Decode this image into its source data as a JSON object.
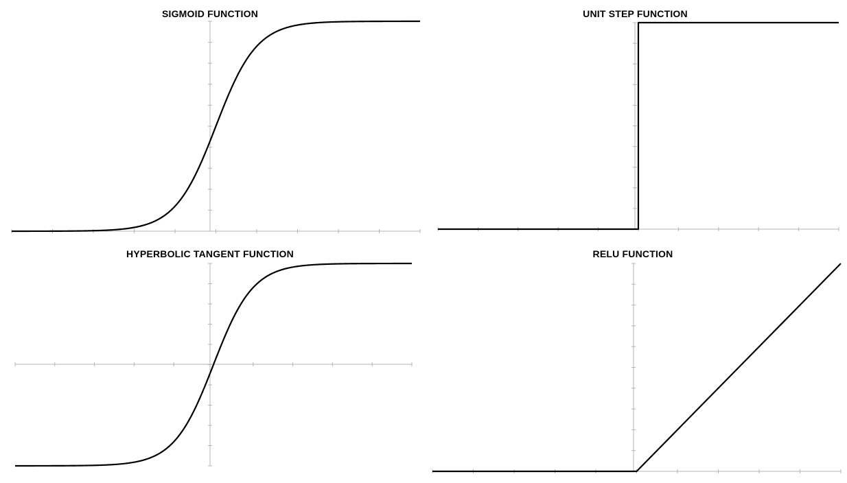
{
  "colors": {
    "axis": "#b4b4b4",
    "curve": "#000000",
    "background": "#ffffff"
  },
  "chart_data": [
    {
      "type": "line",
      "title": "SIGMOID FUNCTION",
      "function": "sigmoid",
      "x": [
        -10,
        -9,
        -8,
        -7,
        -6,
        -5,
        -4,
        -3,
        -2,
        -1,
        0,
        1,
        2,
        3,
        4,
        5,
        6,
        7,
        8,
        9,
        10
      ],
      "y": [
        0.0,
        0.0001,
        0.0003,
        0.0009,
        0.0025,
        0.0067,
        0.018,
        0.0474,
        0.1192,
        0.2689,
        0.5,
        0.7311,
        0.8808,
        0.9526,
        0.982,
        0.9933,
        0.9975,
        0.9991,
        0.9997,
        0.9999,
        1.0
      ],
      "xlim": [
        -10,
        10
      ],
      "ylim": [
        0,
        1
      ],
      "grid": false,
      "legend": "none"
    },
    {
      "type": "line",
      "title": "UNIT STEP FUNCTION",
      "function": "step",
      "x": [
        -10,
        0,
        0,
        10
      ],
      "y": [
        0,
        0,
        1,
        1
      ],
      "xlim": [
        -10,
        10
      ],
      "ylim": [
        0,
        1
      ],
      "grid": false,
      "legend": "none"
    },
    {
      "type": "line",
      "title": "HYPERBOLIC TANGENT FUNCTION",
      "function": "tanh",
      "x": [
        -5,
        -4,
        -3,
        -2,
        -1.5,
        -1,
        -0.5,
        0,
        0.5,
        1,
        1.5,
        2,
        3,
        4,
        5
      ],
      "y": [
        -0.9999,
        -0.9993,
        -0.9951,
        -0.964,
        -0.9051,
        -0.7616,
        -0.4621,
        0,
        0.4621,
        0.7616,
        0.9051,
        0.964,
        0.9951,
        0.9993,
        0.9999
      ],
      "xlim": [
        -5,
        5
      ],
      "ylim": [
        -1,
        1
      ],
      "grid": false,
      "legend": "none"
    },
    {
      "type": "line",
      "title": "RELU FUNCTION",
      "function": "relu",
      "x": [
        -5,
        0,
        5
      ],
      "y": [
        0,
        0,
        5
      ],
      "xlim": [
        -5,
        5
      ],
      "ylim": [
        0,
        5
      ],
      "grid": false,
      "legend": "none"
    }
  ]
}
